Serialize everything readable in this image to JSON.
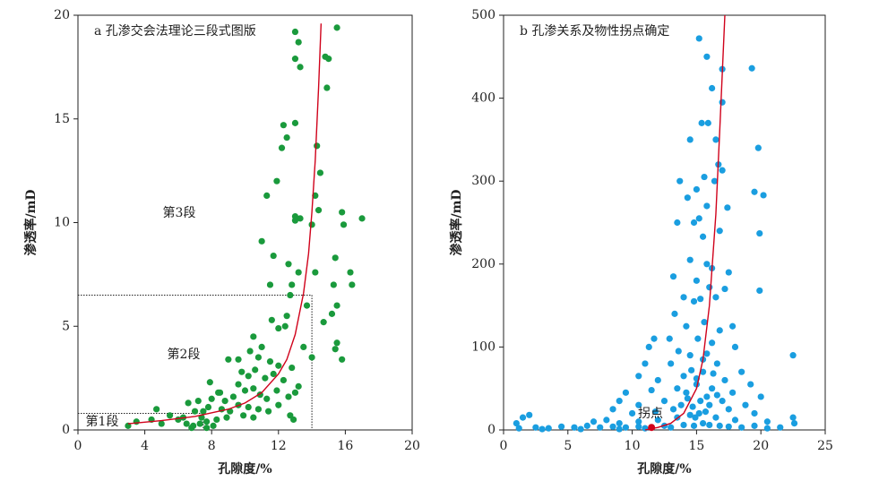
{
  "chart_data": [
    {
      "type": "scatter",
      "title": "a 孔渗交会法理论三段式图版",
      "x_label": "孔隙度/%",
      "y_label": "渗透率/mD",
      "xlim": [
        0,
        20
      ],
      "xticks": [
        0,
        4,
        8,
        12,
        16,
        20
      ],
      "ylim": [
        0,
        20
      ],
      "yticks": [
        0,
        5,
        10,
        15,
        20
      ],
      "annotations": [
        "第3段",
        "第2段",
        "第1段"
      ],
      "boundaries": [
        {
          "x": 14,
          "y": 6.5
        },
        {
          "x": 7.5,
          "y": 0.8
        }
      ],
      "points": {
        "color": "#1a9a3c",
        "x": [
          15.5,
          13.0,
          13.2,
          14.8,
          15.0,
          13.0,
          13.3,
          14.9,
          13.0,
          12.3,
          12.5,
          12.2,
          14.3,
          11.9,
          14.5,
          11.3,
          14.2,
          13.0,
          13.3,
          13.0,
          14.0,
          14.4,
          15.8,
          17.0,
          15.9,
          11.0,
          11.7,
          12.6,
          15.4,
          13.2,
          14.2,
          16.3,
          11.5,
          12.8,
          15.3,
          16.4,
          12.7,
          13.7,
          15.5,
          12.5,
          15.2,
          14.7,
          11.6,
          12.4,
          12.0,
          15.5,
          15.4,
          15.8,
          13.5,
          12.8,
          14.0,
          10.5,
          11.0,
          10.3,
          9.6,
          10.8,
          11.5,
          12.0,
          10.6,
          9.8,
          10.2,
          11.2,
          11.7,
          12.3,
          13.2,
          13.0,
          12.6,
          11.9,
          11.3,
          10.9,
          10.5,
          10.0,
          9.6,
          9.3,
          8.8,
          8.4,
          8.0,
          7.9,
          7.8,
          8.6,
          9.1,
          9.6,
          10.2,
          10.8,
          11.4,
          12.0,
          12.7,
          12.9,
          10.5,
          9.9,
          8.9,
          8.3,
          7.7,
          7.3,
          6.9,
          6.5,
          6.3,
          7.0,
          7.4,
          8.1,
          6.6,
          4.7,
          4.4,
          3.5,
          3.0,
          5.0,
          5.5,
          6.0,
          7.7,
          6.8,
          7.2,
          7.5,
          9.0,
          8.5
        ],
        "y": [
          19.4,
          19.2,
          18.7,
          18.0,
          17.9,
          17.9,
          17.5,
          16.5,
          14.8,
          14.7,
          14.1,
          13.6,
          13.7,
          12.0,
          12.4,
          11.3,
          11.3,
          10.3,
          10.2,
          10.1,
          9.9,
          10.6,
          10.5,
          10.2,
          9.9,
          9.1,
          8.4,
          8.0,
          8.3,
          7.6,
          7.6,
          7.6,
          7.0,
          7.0,
          7.0,
          7.0,
          6.5,
          6.0,
          6.0,
          5.5,
          5.6,
          5.2,
          5.3,
          5.0,
          4.9,
          4.2,
          3.9,
          3.4,
          4.0,
          3.0,
          3.5,
          4.5,
          4.0,
          3.8,
          3.4,
          3.5,
          3.3,
          3.1,
          2.9,
          2.8,
          2.6,
          2.5,
          2.7,
          2.4,
          2.1,
          1.8,
          1.6,
          1.9,
          1.5,
          1.7,
          2.0,
          1.9,
          2.2,
          1.6,
          1.4,
          1.8,
          1.5,
          2.3,
          1.1,
          1.0,
          0.9,
          1.2,
          1.1,
          1.0,
          0.9,
          1.2,
          0.7,
          0.5,
          0.6,
          0.7,
          0.6,
          0.5,
          0.4,
          0.3,
          0.2,
          0.3,
          0.6,
          0.9,
          0.6,
          0.2,
          1.3,
          1.0,
          0.5,
          0.4,
          0.2,
          0.3,
          0.7,
          0.5,
          0.1,
          0.1,
          1.4,
          0.9,
          3.4,
          1.8
        ]
      },
      "curve": {
        "color": "#d0021b",
        "x": [
          3,
          5,
          7,
          9,
          10,
          11,
          12,
          12.5,
          13,
          13.5,
          13.8,
          14,
          14.2,
          14.4,
          14.55
        ],
        "y": [
          0.3,
          0.45,
          0.65,
          1.0,
          1.3,
          1.8,
          2.7,
          3.4,
          4.6,
          6.6,
          8.5,
          10.5,
          13,
          16.5,
          19.6
        ]
      }
    },
    {
      "type": "scatter",
      "title": "b 孔渗关系及物性拐点确定",
      "x_label": "孔隙度/%",
      "y_label": "渗透率/mD",
      "xlim": [
        0,
        25
      ],
      "xticks": [
        0,
        5,
        10,
        15,
        20,
        25
      ],
      "ylim": [
        0,
        500
      ],
      "yticks": [
        0,
        100,
        200,
        300,
        400,
        500
      ],
      "annotations": [
        "拐点"
      ],
      "inflection": {
        "x": 11.5,
        "y": 3,
        "color": "#d0021b"
      },
      "points": {
        "color": "#1a9ee0",
        "x": [
          15.2,
          15.8,
          17.0,
          19.3,
          16.2,
          17.0,
          15.4,
          15.9,
          16.5,
          14.5,
          16.7,
          17.0,
          19.8,
          13.7,
          15.0,
          15.6,
          16.4,
          14.3,
          15.8,
          17.4,
          19.5,
          20.2,
          15.2,
          14.8,
          15.5,
          13.5,
          16.8,
          19.9,
          14.5,
          15.8,
          16.2,
          17.5,
          13.2,
          15.0,
          16.0,
          17.2,
          19.9,
          14.0,
          14.8,
          15.3,
          16.5,
          13.3,
          15.6,
          16.8,
          17.8,
          14.2,
          12.9,
          15.1,
          16.2,
          11.3,
          11.7,
          13.6,
          18.0,
          14.5,
          15.8,
          22.5,
          11.0,
          13.0,
          16.6,
          18.5,
          10.5,
          12.0,
          14.0,
          15.5,
          17.2,
          19.2,
          9.5,
          11.5,
          13.5,
          15.0,
          16.2,
          17.8,
          20.0,
          9.0,
          10.5,
          12.5,
          14.3,
          15.8,
          17.0,
          18.8,
          8.5,
          10.0,
          11.8,
          13.2,
          14.7,
          16.0,
          17.5,
          19.5,
          22.5,
          1.0,
          1.5,
          2.0,
          7.0,
          8.0,
          9.0,
          10.5,
          12.0,
          13.5,
          14.5,
          15.2,
          16.5,
          18.0,
          20.5,
          22.6,
          1.2,
          2.5,
          3.5,
          4.5,
          5.5,
          6.5,
          7.5,
          8.5,
          9.5,
          10.5,
          11.0,
          12.5,
          13.0,
          14.0,
          14.8,
          15.5,
          16.0,
          16.8,
          17.5,
          18.5,
          19.5,
          20.5,
          21.5,
          3.0,
          6.0,
          9.0,
          14.2,
          15.0,
          15.5,
          16.3,
          14.6,
          13.8,
          15.3,
          16.6,
          14.9,
          15.7
        ],
        "y": [
          472,
          450,
          435,
          436,
          412,
          395,
          370,
          370,
          350,
          350,
          320,
          313,
          340,
          300,
          290,
          305,
          300,
          280,
          270,
          268,
          287,
          283,
          255,
          250,
          233,
          250,
          240,
          237,
          205,
          200,
          195,
          190,
          185,
          180,
          172,
          170,
          168,
          160,
          155,
          158,
          160,
          140,
          130,
          120,
          125,
          125,
          110,
          110,
          105,
          100,
          110,
          95,
          100,
          90,
          92,
          90,
          80,
          80,
          80,
          70,
          65,
          60,
          65,
          70,
          60,
          55,
          45,
          48,
          50,
          55,
          50,
          45,
          40,
          35,
          30,
          35,
          38,
          40,
          35,
          30,
          25,
          20,
          22,
          25,
          28,
          30,
          25,
          20,
          15,
          8,
          15,
          18,
          10,
          12,
          8,
          10,
          12,
          15,
          18,
          20,
          15,
          12,
          10,
          8,
          2,
          3,
          2,
          4,
          3,
          5,
          3,
          4,
          3,
          4,
          2,
          5,
          3,
          6,
          5,
          8,
          6,
          5,
          4,
          3,
          5,
          2,
          3,
          1,
          1,
          1,
          45,
          62,
          85,
          68,
          72,
          30,
          35,
          42,
          15,
          22
        ]
      },
      "curve": {
        "color": "#d0021b",
        "x": [
          11,
          12,
          13,
          14,
          15,
          15.5,
          16,
          16.5,
          16.8,
          17,
          17.2
        ],
        "y": [
          0,
          3,
          8,
          20,
          50,
          85,
          150,
          260,
          360,
          430,
          500
        ]
      }
    }
  ]
}
